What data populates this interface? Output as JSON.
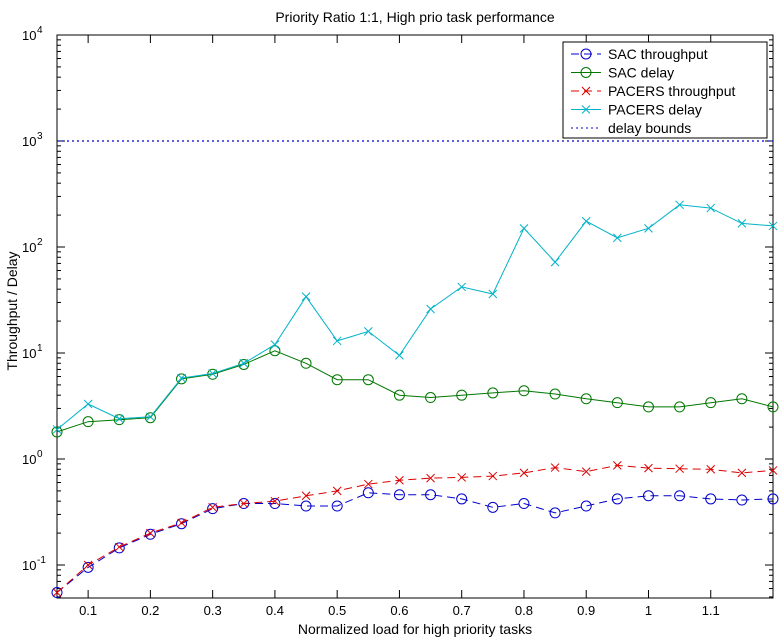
{
  "chart_data": {
    "type": "line",
    "title": "Priority Ratio 1:1, High prio task performance",
    "xlabel": "Normalized load for high priority tasks",
    "ylabel": "Throughput / Delay",
    "yscale": "log",
    "xlim": [
      0.05,
      1.2
    ],
    "ylim": [
      0.05,
      10000
    ],
    "x_ticks": [
      0.1,
      0.2,
      0.3,
      0.4,
      0.5,
      0.6,
      0.7,
      0.8,
      0.9,
      1,
      1.1
    ],
    "y_ticks": [
      {
        "value": 0.1,
        "base": "10",
        "exp": "-1"
      },
      {
        "value": 1,
        "base": "10",
        "exp": "0"
      },
      {
        "value": 10,
        "base": "10",
        "exp": "1"
      },
      {
        "value": 100,
        "base": "10",
        "exp": "2"
      },
      {
        "value": 1000,
        "base": "10",
        "exp": "3"
      },
      {
        "value": 10000,
        "base": "10",
        "exp": "4"
      }
    ],
    "grid": false,
    "legend_position": "top-right",
    "x": [
      0.05,
      0.1,
      0.15,
      0.2,
      0.25,
      0.3,
      0.35,
      0.4,
      0.45,
      0.5,
      0.55,
      0.6,
      0.65,
      0.7,
      0.75,
      0.8,
      0.85,
      0.9,
      0.95,
      1.0,
      1.05,
      1.1,
      1.15,
      1.2
    ],
    "series": [
      {
        "name": "SAC throughput",
        "color": "#0000cc",
        "marker": "circle",
        "dash": "8,5",
        "values": [
          0.055,
          0.095,
          0.145,
          0.195,
          0.245,
          0.34,
          0.38,
          0.38,
          0.36,
          0.36,
          0.48,
          0.46,
          0.46,
          0.42,
          0.35,
          0.38,
          0.31,
          0.36,
          0.42,
          0.45,
          0.45,
          0.42,
          0.41,
          0.42
        ]
      },
      {
        "name": "SAC delay",
        "color": "#007700",
        "marker": "circle",
        "dash": "",
        "values": [
          1.8,
          2.25,
          2.35,
          2.45,
          5.7,
          6.3,
          7.8,
          10.5,
          8.0,
          5.6,
          5.6,
          4.0,
          3.8,
          4.0,
          4.2,
          4.4,
          4.1,
          3.7,
          3.4,
          3.1,
          3.1,
          3.4,
          3.7,
          3.1
        ]
      },
      {
        "name": "PACERS throughput",
        "color": "#dd0000",
        "marker": "x",
        "dash": "8,5",
        "values": [
          0.055,
          0.1,
          0.148,
          0.2,
          0.25,
          0.35,
          0.38,
          0.4,
          0.45,
          0.5,
          0.58,
          0.63,
          0.66,
          0.67,
          0.69,
          0.74,
          0.83,
          0.76,
          0.87,
          0.82,
          0.81,
          0.8,
          0.74,
          0.78
        ]
      },
      {
        "name": "PACERS delay",
        "color": "#00b3c8",
        "marker": "x",
        "dash": "",
        "values": [
          1.9,
          3.3,
          2.4,
          2.5,
          5.8,
          6.4,
          8.0,
          12.0,
          34.0,
          13.0,
          16.0,
          9.5,
          26.0,
          42.0,
          36.0,
          150.0,
          72.0,
          175.0,
          122.0,
          150.0,
          250.0,
          233.0,
          167.0,
          158.0
        ]
      }
    ],
    "reference_lines": [
      {
        "name": "delay bounds",
        "value": 1000,
        "color": "#0000cc",
        "dash": "2,3"
      }
    ]
  }
}
